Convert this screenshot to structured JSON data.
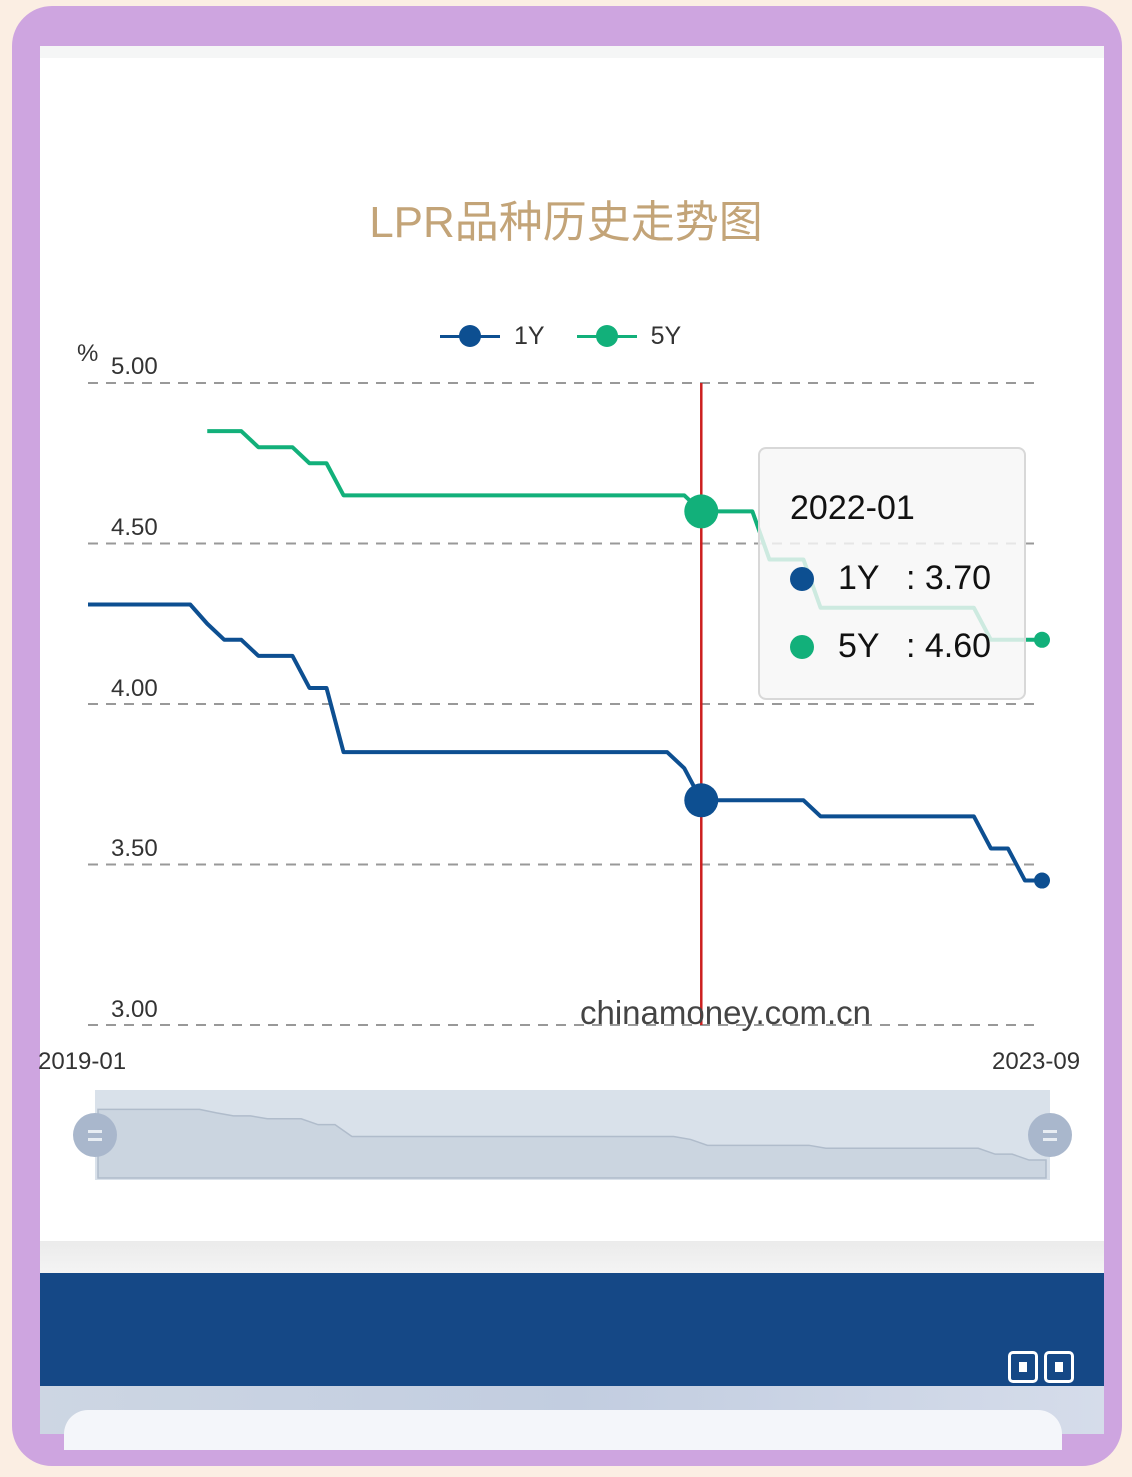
{
  "chart_data": {
    "type": "line",
    "title": "LPR品种历史走势图",
    "ylabel": "%",
    "ylim": [
      3.0,
      5.0
    ],
    "yticks": [
      "5.00",
      "4.50",
      "4.00",
      "3.50",
      "3.00"
    ],
    "xtick_labels": [
      "2019-01",
      "2023-09"
    ],
    "x_start": "2019-01",
    "x_end": "2023-09",
    "grid": "horizontal dashed",
    "legend_position": "top",
    "series": [
      {
        "name": "1Y",
        "color": "#0d4f91",
        "values": [
          4.31,
          4.31,
          4.31,
          4.31,
          4.31,
          4.31,
          4.31,
          4.25,
          4.2,
          4.2,
          4.15,
          4.15,
          4.15,
          4.05,
          4.05,
          3.85,
          3.85,
          3.85,
          3.85,
          3.85,
          3.85,
          3.85,
          3.85,
          3.85,
          3.85,
          3.85,
          3.85,
          3.85,
          3.85,
          3.85,
          3.85,
          3.85,
          3.85,
          3.85,
          3.85,
          3.8,
          3.7,
          3.7,
          3.7,
          3.7,
          3.7,
          3.7,
          3.7,
          3.65,
          3.65,
          3.65,
          3.65,
          3.65,
          3.65,
          3.65,
          3.65,
          3.65,
          3.65,
          3.55,
          3.55,
          3.45,
          3.45
        ]
      },
      {
        "name": "5Y",
        "color": "#12b07a",
        "values": [
          null,
          null,
          null,
          null,
          null,
          null,
          null,
          4.85,
          4.85,
          4.85,
          4.8,
          4.8,
          4.8,
          4.75,
          4.75,
          4.65,
          4.65,
          4.65,
          4.65,
          4.65,
          4.65,
          4.65,
          4.65,
          4.65,
          4.65,
          4.65,
          4.65,
          4.65,
          4.65,
          4.65,
          4.65,
          4.65,
          4.65,
          4.65,
          4.65,
          4.65,
          4.6,
          4.6,
          4.6,
          4.6,
          4.45,
          4.45,
          4.45,
          4.3,
          4.3,
          4.3,
          4.3,
          4.3,
          4.3,
          4.3,
          4.3,
          4.3,
          4.3,
          4.2,
          4.2,
          4.2,
          4.2
        ]
      }
    ],
    "cursor_index": 36,
    "tooltip": {
      "date": "2022-01",
      "rows": [
        {
          "name": "1Y",
          "value": ": 3.70"
        },
        {
          "name": "5Y",
          "value": ": 4.60"
        }
      ]
    },
    "watermark": "chinamoney.com.cn",
    "cursor_color": "#cc1f1f"
  }
}
